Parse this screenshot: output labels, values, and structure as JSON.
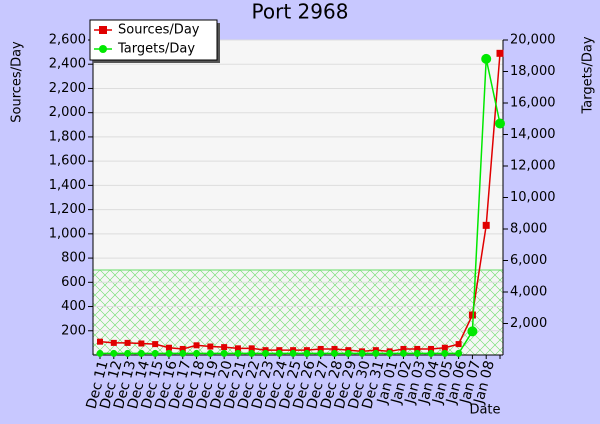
{
  "chart_data": {
    "type": "line",
    "title": "Port 2968",
    "ylabel": "Sources/Day",
    "y2label": "Targets/Day",
    "xlabel": "Date",
    "categories": [
      "Dec 11",
      "Dec 12",
      "Dec 13",
      "Dec 14",
      "Dec 15",
      "Dec 16",
      "Dec 17",
      "Dec 18",
      "Dec 19",
      "Dec 20",
      "Dec 21",
      "Dec 22",
      "Dec 23",
      "Dec 24",
      "Dec 25",
      "Dec 26",
      "Dec 27",
      "Dec 28",
      "Dec 29",
      "Dec 30",
      "Dec 31",
      "Jan 01",
      "Jan 02",
      "Jan 03",
      "Jan 04",
      "Jan 05",
      "Jan 06",
      "Jan 07",
      "Jan 08",
      null
    ],
    "series": [
      {
        "name": "Sources/Day",
        "color": "#e00000",
        "marker": "square",
        "values": [
          110,
          100,
          100,
          95,
          90,
          60,
          50,
          80,
          70,
          65,
          55,
          55,
          40,
          40,
          40,
          40,
          50,
          50,
          40,
          30,
          40,
          30,
          50,
          50,
          50,
          60,
          90,
          330,
          1070,
          2490
        ]
      },
      {
        "name": "Targets/Day",
        "color": "#00e800",
        "marker": "circle",
        "axis": "y2",
        "values": [
          100,
          100,
          100,
          100,
          100,
          100,
          100,
          100,
          100,
          100,
          100,
          100,
          100,
          100,
          100,
          100,
          100,
          100,
          100,
          100,
          100,
          100,
          100,
          100,
          100,
          100,
          100,
          1500,
          18800,
          14700
        ]
      }
    ],
    "ylim": [
      0,
      2600
    ],
    "yticks": [
      200,
      400,
      600,
      800,
      {
        "value": 1000,
        "label": "1,000"
      },
      {
        "value": 1200,
        "label": "1,200"
      },
      {
        "value": 1400,
        "label": "1,400"
      },
      {
        "value": 1600,
        "label": "1,600"
      },
      {
        "value": 1800,
        "label": "1,800"
      },
      {
        "value": 2000,
        "label": "2,000"
      },
      {
        "value": 2200,
        "label": "2,200"
      },
      {
        "value": 2400,
        "label": "2,400"
      },
      {
        "value": 2600,
        "label": "2,600"
      }
    ],
    "y2lim": [
      0,
      20000
    ],
    "y2ticks": [
      {
        "value": 2000,
        "label": "2,000"
      },
      {
        "value": 4000,
        "label": "4,000"
      },
      {
        "value": 6000,
        "label": "6,000"
      },
      {
        "value": 8000,
        "label": "8,000"
      },
      {
        "value": 10000,
        "label": "10,000"
      },
      {
        "value": 12000,
        "label": "12,000"
      },
      {
        "value": 14000,
        "label": "14,000"
      },
      {
        "value": 16000,
        "label": "16,000"
      },
      {
        "value": 18000,
        "label": "18,000"
      },
      {
        "value": 20000,
        "label": "20,000"
      }
    ],
    "grid": true,
    "legend": "upper left"
  }
}
